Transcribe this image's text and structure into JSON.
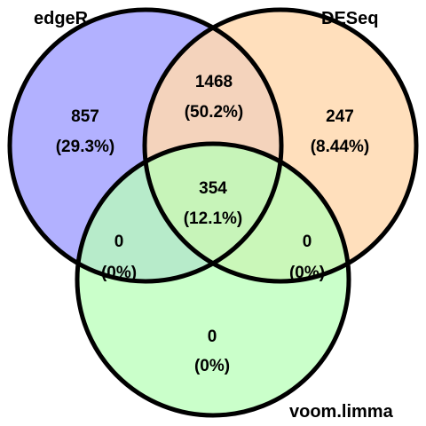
{
  "sets": [
    {
      "id": "edger",
      "name": "edgeR",
      "color": "#aaa8ff"
    },
    {
      "id": "deseq",
      "name": "DESeq",
      "color": "#ffd9b0"
    },
    {
      "id": "voom",
      "name": "voom.limma",
      "color": "#b8ffb8"
    }
  ],
  "regions": {
    "edger_only": {
      "count": "857",
      "percent": "(29.3%)"
    },
    "deseq_only": {
      "count": "247",
      "percent": "(8.44%)"
    },
    "edger_deseq": {
      "count": "1468",
      "percent": "(50.2%)"
    },
    "all_three": {
      "count": "354",
      "percent": "(12.1%)"
    },
    "edger_voom": {
      "count": "0",
      "percent": "(0%)"
    },
    "deseq_voom": {
      "count": "0",
      "percent": "(0%)"
    },
    "voom_only": {
      "count": "0",
      "percent": "(0%)"
    }
  },
  "colors": {
    "outline": "#000000",
    "background": "#ffffff"
  }
}
